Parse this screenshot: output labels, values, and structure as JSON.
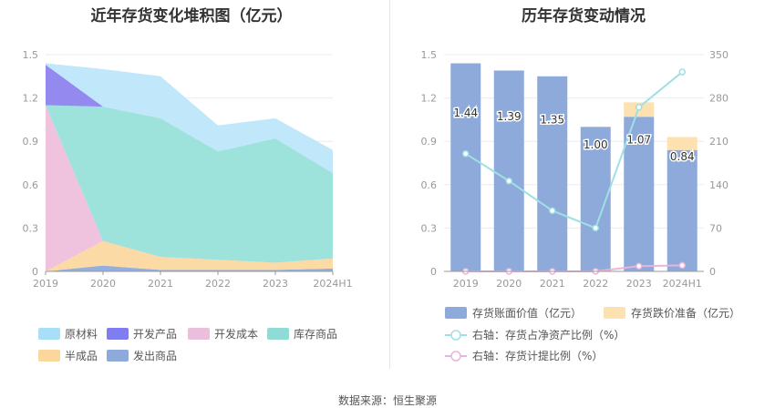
{
  "chart_data": [
    {
      "type": "area",
      "title": "近年存货变化堆积图（亿元）",
      "categories": [
        "2019",
        "2020",
        "2021",
        "2022",
        "2023",
        "2024H1"
      ],
      "ylim": [
        0,
        1.5
      ],
      "yticks": [
        "0",
        "0.3",
        "0.6",
        "0.9",
        "1.2",
        "1.5"
      ],
      "stacked": true,
      "series": [
        {
          "name": "发出商品",
          "color": "#8eaadb",
          "values": [
            0.0,
            0.04,
            0.01,
            0.01,
            0.01,
            0.02
          ]
        },
        {
          "name": "半成品",
          "color": "#fcd8a0",
          "values": [
            0.0,
            0.17,
            0.09,
            0.07,
            0.05,
            0.07
          ]
        },
        {
          "name": "开发成本",
          "color": "#eebfdc",
          "values": [
            1.15,
            0.0,
            0.0,
            0.0,
            0.0,
            0.0
          ]
        },
        {
          "name": "库存商品",
          "color": "#98e1da",
          "values": [
            0.0,
            0.93,
            0.96,
            0.75,
            0.86,
            0.59
          ]
        },
        {
          "name": "开发产品",
          "color": "#8d83ee",
          "values": [
            0.28,
            0.0,
            0.0,
            0.0,
            0.0,
            0.0
          ]
        },
        {
          "name": "原材料",
          "color": "#bde6fa",
          "values": [
            0.01,
            0.26,
            0.29,
            0.18,
            0.14,
            0.16
          ]
        }
      ],
      "legend": [
        {
          "name": "原材料",
          "color": "#a8def7"
        },
        {
          "name": "开发产品",
          "color": "#7f7df0"
        },
        {
          "name": "开发成本",
          "color": "#e9bfdb"
        },
        {
          "name": "库存商品",
          "color": "#8fdcd6"
        },
        {
          "name": "半成品",
          "color": "#fbd69d"
        },
        {
          "name": "发出商品",
          "color": "#8eaadb"
        }
      ],
      "legend_position": "bottom"
    },
    {
      "type": "bar",
      "title": "历年存货变动情况",
      "categories": [
        "2019",
        "2020",
        "2021",
        "2022",
        "2023",
        "2024H1"
      ],
      "ylim": [
        0,
        1.5
      ],
      "yticks": [
        "0",
        "0.3",
        "0.6",
        "0.9",
        "1.2",
        "1.5"
      ],
      "y2lim": [
        0,
        350
      ],
      "y2ticks": [
        "0",
        "70",
        "140",
        "210",
        "280",
        "350"
      ],
      "series": [
        {
          "name": "存货账面价值（亿元）",
          "color": "#8eaadb",
          "values": [
            1.44,
            1.39,
            1.35,
            1.0,
            1.07,
            0.84
          ],
          "labels": [
            "1.44",
            "1.39",
            "1.35",
            "1.00",
            "1.07",
            "0.84"
          ]
        },
        {
          "name": "存货跌价准备（亿元）",
          "color": "#fde1b0",
          "values": [
            0,
            0,
            0,
            0,
            0.1,
            0.09
          ]
        },
        {
          "name": "右轴：存货占净资产比例（%）",
          "color": "#9fe0e4",
          "type": "line",
          "axis": "right",
          "values": [
            190,
            146,
            98,
            70,
            265,
            322
          ]
        },
        {
          "name": "右轴：存货计提比例（%）",
          "color": "#e8b5d8",
          "type": "line",
          "axis": "right",
          "values": [
            0,
            0,
            0,
            0,
            8.5,
            9.7
          ]
        }
      ],
      "legend_position": "bottom"
    }
  ],
  "source": "数据来源：恒生聚源"
}
